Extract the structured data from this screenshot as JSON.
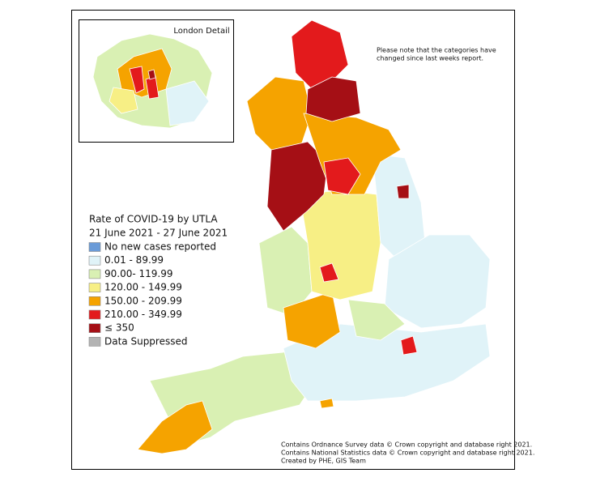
{
  "map": {
    "inset_title": "London Detail",
    "note": [
      "Please note that the categories have",
      "changed since last weeks report."
    ],
    "legend": {
      "title": "Rate of COVID-19 by UTLA",
      "subtitle": "21 June 2021 - 27 June 2021",
      "items": [
        {
          "label": "No new cases reported",
          "color": "#6a9bd8"
        },
        {
          "label": "0.01 - 89.99",
          "color": "#e0f3f8"
        },
        {
          "label": "90.00- 119.99",
          "color": "#d9f0b3"
        },
        {
          "label": "120.00 - 149.99",
          "color": "#f7ef85"
        },
        {
          "label": "150.00 - 209.99",
          "color": "#f5a300"
        },
        {
          "label": "210.00 - 349.99",
          "color": "#e31a1c"
        },
        {
          "label": "≤ 350",
          "color": "#a50f15"
        },
        {
          "label": "Data Suppressed",
          "color": "#b3b3b3"
        }
      ]
    },
    "credits": [
      "Contains Ordnance Survey data © Crown copyright and database right 2021.",
      "Contains National Statistics data © Crown copyright and database right 2021.",
      "Created by PHE, GIS Team"
    ]
  }
}
